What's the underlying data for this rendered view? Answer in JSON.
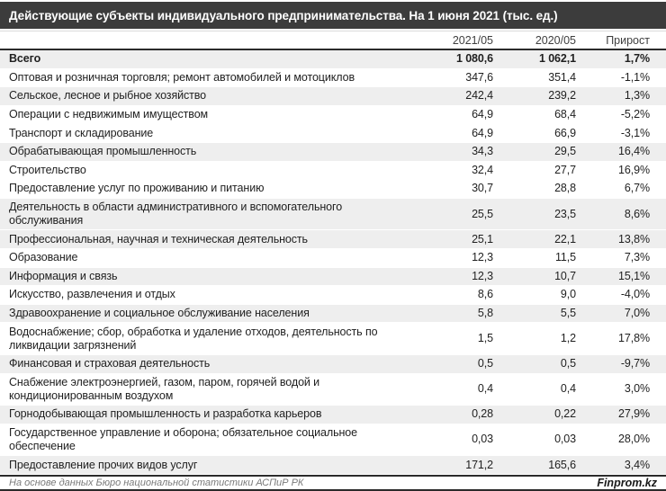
{
  "title": "Действующие субъекты индивидуального предпринимательства. На 1 июня 2021 (тыс. ед.)",
  "columns": [
    "2021/05",
    "2020/05",
    "Прирост"
  ],
  "footer": {
    "source": "На основе данных Бюро национальной статистики АСПиР РК",
    "brand": "Finprom.kz"
  },
  "colors": {
    "title_bar": "#3c3c3c",
    "title_text": "#ffffff",
    "row_shade": "#eeeeee",
    "border": "#2b2b2b"
  },
  "chart_data": {
    "type": "table",
    "title": "Действующие субъекты индивидуального предпринимательства. На 1 июня 2021 (тыс. ед.)",
    "columns": [
      "2021/05",
      "2020/05",
      "Прирост"
    ],
    "rows": [
      {
        "label": "Всего",
        "v2021": "1 080,6",
        "v2020": "1 062,1",
        "growth": "1,7%",
        "bold": true,
        "shaded": true
      },
      {
        "label": "Оптовая и розничная торговля; ремонт автомобилей и мотоциклов",
        "v2021": "347,6",
        "v2020": "351,4",
        "growth": "-1,1%",
        "bold": false,
        "shaded": false
      },
      {
        "label": "Сельское, лесное и рыбное хозяйство",
        "v2021": "242,4",
        "v2020": "239,2",
        "growth": "1,3%",
        "bold": false,
        "shaded": true
      },
      {
        "label": "Операции с недвижимым имуществом",
        "v2021": "64,9",
        "v2020": "68,4",
        "growth": "-5,2%",
        "bold": false,
        "shaded": false
      },
      {
        "label": "Транспорт и складирование",
        "v2021": "64,9",
        "v2020": "66,9",
        "growth": "-3,1%",
        "bold": false,
        "shaded": false
      },
      {
        "label": "Обрабатывающая промышленность",
        "v2021": "34,3",
        "v2020": "29,5",
        "growth": "16,4%",
        "bold": false,
        "shaded": true
      },
      {
        "label": "Строительство",
        "v2021": "32,4",
        "v2020": "27,7",
        "growth": "16,9%",
        "bold": false,
        "shaded": false
      },
      {
        "label": "Предоставление услуг по проживанию и питанию",
        "v2021": "30,7",
        "v2020": "28,8",
        "growth": "6,7%",
        "bold": false,
        "shaded": false
      },
      {
        "label": "Деятельность в области административного и вспомогательного обслуживания",
        "v2021": "25,5",
        "v2020": "23,5",
        "growth": "8,6%",
        "bold": false,
        "shaded": true
      },
      {
        "label": "Профессиональная, научная и техническая деятельность",
        "v2021": "25,1",
        "v2020": "22,1",
        "growth": "13,8%",
        "bold": false,
        "shaded": true
      },
      {
        "label": "Образование",
        "v2021": "12,3",
        "v2020": "11,5",
        "growth": "7,3%",
        "bold": false,
        "shaded": false
      },
      {
        "label": "Информация и связь",
        "v2021": "12,3",
        "v2020": "10,7",
        "growth": "15,1%",
        "bold": false,
        "shaded": true
      },
      {
        "label": "Искусство, развлечения и отдых",
        "v2021": "8,6",
        "v2020": "9,0",
        "growth": "-4,0%",
        "bold": false,
        "shaded": false
      },
      {
        "label": "Здравоохранение и социальное обслуживание населения",
        "v2021": "5,8",
        "v2020": "5,5",
        "growth": "7,0%",
        "bold": false,
        "shaded": true
      },
      {
        "label": "Водоснабжение; сбор, обработка и удаление отходов, деятельность по ликвидации загрязнений",
        "v2021": "1,5",
        "v2020": "1,2",
        "growth": "17,8%",
        "bold": false,
        "shaded": false
      },
      {
        "label": "Финансовая и страховая деятельность",
        "v2021": "0,5",
        "v2020": "0,5",
        "growth": "-9,7%",
        "bold": false,
        "shaded": true
      },
      {
        "label": "Снабжение электроэнергией, газом, паром, горячей водой и кондиционированным воздухом",
        "v2021": "0,4",
        "v2020": "0,4",
        "growth": "3,0%",
        "bold": false,
        "shaded": false
      },
      {
        "label": "Горнодобывающая промышленность и разработка карьеров",
        "v2021": "0,28",
        "v2020": "0,22",
        "growth": "27,9%",
        "bold": false,
        "shaded": true
      },
      {
        "label": "Государственное управление и оборона; обязательное социальное обеспечение",
        "v2021": "0,03",
        "v2020": "0,03",
        "growth": "28,0%",
        "bold": false,
        "shaded": false
      },
      {
        "label": "Предоставление прочих видов услуг",
        "v2021": "171,2",
        "v2020": "165,6",
        "growth": "3,4%",
        "bold": false,
        "shaded": true
      }
    ]
  }
}
